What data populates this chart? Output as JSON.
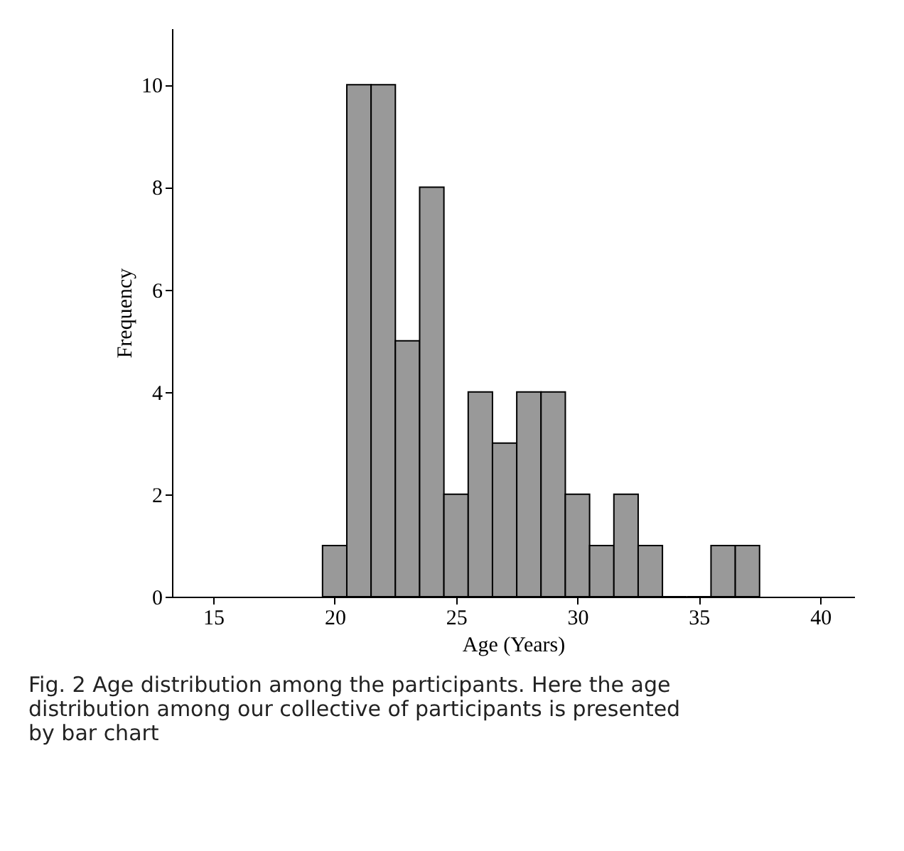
{
  "chart_data": {
    "type": "histogram",
    "xlabel": "Age (Years)",
    "ylabel": "Frequency",
    "bins": [
      19.5,
      20.5,
      21.5,
      22.5,
      23.5,
      24.5,
      25.5,
      26.5,
      27.5,
      28.5,
      29.5,
      30.5,
      31.5,
      32.5,
      33.5,
      34.5,
      35.5,
      36.5,
      37.5
    ],
    "values": [
      1,
      10,
      10,
      5,
      8,
      2,
      4,
      3,
      4,
      4,
      2,
      1,
      2,
      1,
      0,
      0,
      1,
      1
    ],
    "color": "#999999",
    "xlim": [
      13.3,
      41.4
    ],
    "xticks": [
      15,
      20,
      25,
      30,
      35,
      40
    ],
    "ylim": [
      0,
      11.1
    ],
    "yticks": [
      0,
      2,
      4,
      6,
      8,
      10
    ],
    "grid": false,
    "annotations": [
      "Fig. 2 Age distribution among the participants. Here the age distribution among our collective of participants is presented by bar chart"
    ]
  }
}
